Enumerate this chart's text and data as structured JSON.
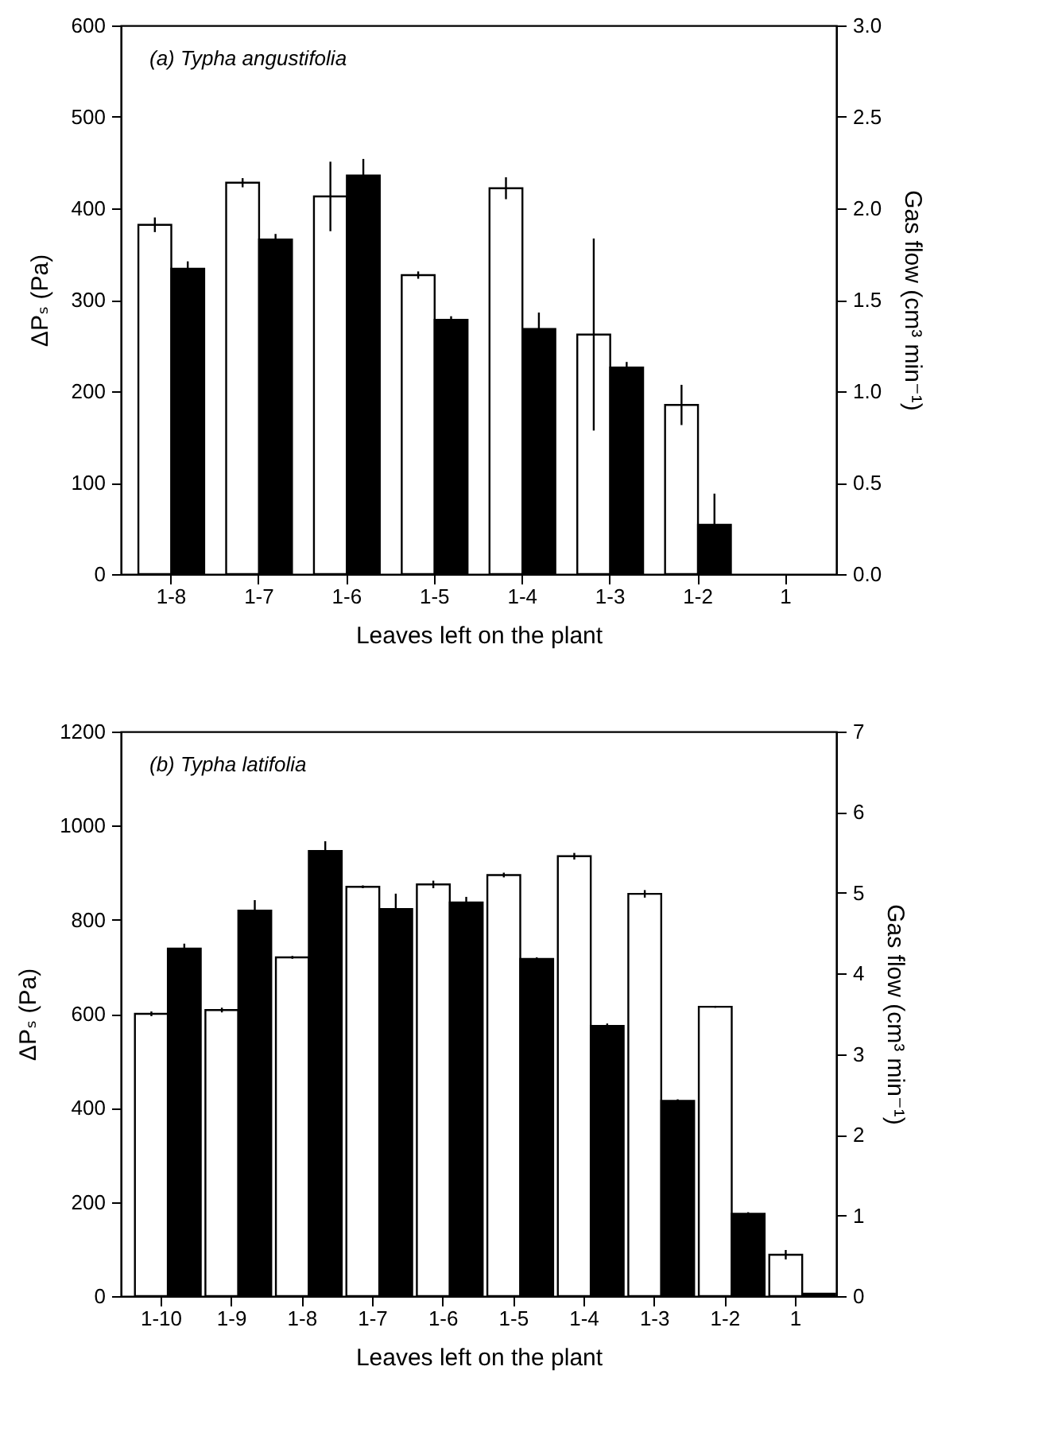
{
  "chart_data": [
    {
      "type": "bar",
      "title": "(a) Typha angustifolia",
      "xlabel": "Leaves left on the plant",
      "ylabel": "ΔPₛ (Pa)",
      "y2label": "Gas flow (cm³ min⁻¹)",
      "categories": [
        "1-8",
        "1-7",
        "1-6",
        "1-5",
        "1-4",
        "1-3",
        "1-2",
        "1"
      ],
      "series": [
        {
          "color": "#ffffff",
          "values": [
            382,
            428,
            413,
            327,
            422,
            262,
            185,
            null
          ],
          "errors": [
            8,
            5,
            38,
            4,
            12,
            105,
            22,
            null
          ]
        },
        {
          "color": "#000000",
          "axis": "y2",
          "values": [
            1.67,
            1.83,
            2.18,
            1.39,
            1.34,
            1.13,
            0.27,
            null
          ],
          "errors": [
            0.04,
            0.03,
            0.09,
            0.02,
            0.09,
            0.03,
            0.17,
            null
          ]
        }
      ],
      "ylim": [
        0,
        600
      ],
      "yticks": [
        0,
        100,
        200,
        300,
        400,
        500,
        600
      ],
      "y2lim": [
        0,
        3
      ],
      "y2ticks": [
        {
          "value": 0,
          "label": "0.0"
        },
        0.5,
        {
          "value": 1,
          "label": "1.0"
        },
        1.5,
        {
          "value": 2,
          "label": "2.0"
        },
        2.5,
        {
          "value": 3,
          "label": "3.0"
        }
      ],
      "grid": false
    },
    {
      "type": "bar",
      "title": "(b) Typha latifolia",
      "xlabel": "Leaves left on the plant",
      "ylabel": "ΔPₛ (Pa)",
      "y2label": "Gas flow (cm³ min⁻¹)",
      "categories": [
        "1-10",
        "1-9",
        "1-8",
        "1-7",
        "1-6",
        "1-5",
        "1-4",
        "1-3",
        "1-2",
        "1"
      ],
      "series": [
        {
          "color": "#ffffff",
          "values": [
            600,
            608,
            720,
            870,
            875,
            895,
            935,
            855,
            615,
            88
          ],
          "errors": [
            5,
            5,
            3,
            3,
            8,
            5,
            7,
            8,
            2,
            10
          ]
        },
        {
          "color": "#000000",
          "axis": "y2",
          "values": [
            4.31,
            4.78,
            5.52,
            4.8,
            4.88,
            4.18,
            3.35,
            2.42,
            1.02,
            0.03
          ],
          "errors": [
            0.06,
            0.13,
            0.12,
            0.19,
            0.07,
            0.02,
            0.03,
            0.02,
            0.02,
            null
          ]
        }
      ],
      "ylim": [
        0,
        1200
      ],
      "yticks": [
        0,
        200,
        400,
        600,
        800,
        1000,
        1200
      ],
      "y2lim": [
        0,
        7
      ],
      "y2ticks": [
        0,
        1,
        2,
        3,
        4,
        5,
        6,
        7
      ],
      "grid": false
    }
  ]
}
